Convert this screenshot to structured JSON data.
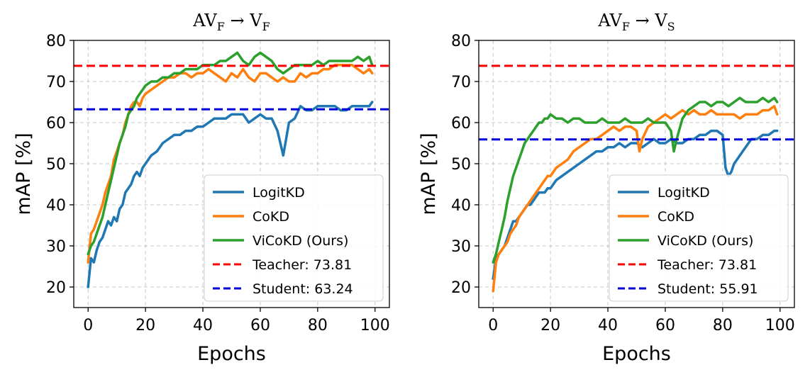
{
  "chart_data": [
    {
      "type": "line",
      "title": {
        "main": "AV",
        "sub1": "F",
        "arrow": "→",
        "main2": "V",
        "sub2": "F"
      },
      "xlabel": "Epochs",
      "ylabel": "mAP [%]",
      "xlim": [
        -5,
        105
      ],
      "ylim": [
        15,
        80
      ],
      "xticks": [
        0,
        20,
        40,
        60,
        80,
        100
      ],
      "yticks": [
        20,
        30,
        40,
        50,
        60,
        70,
        80
      ],
      "xtick_labels": [
        "0",
        "20",
        "40",
        "60",
        "80",
        "100"
      ],
      "ytick_labels": [
        "20",
        "30",
        "40",
        "50",
        "60",
        "70",
        "80"
      ],
      "grid": true,
      "legend_position": "lower-right",
      "series": [
        {
          "name": "LogitKD",
          "color": "#1f77b4",
          "style": "solid",
          "x": [
            0,
            1,
            2,
            3,
            4,
            5,
            6,
            7,
            8,
            9,
            10,
            11,
            12,
            13,
            14,
            15,
            16,
            17,
            18,
            19,
            20,
            22,
            24,
            26,
            28,
            30,
            32,
            34,
            36,
            38,
            40,
            42,
            44,
            46,
            48,
            50,
            52,
            54,
            56,
            58,
            60,
            62,
            64,
            66,
            67,
            68,
            69,
            70,
            72,
            74,
            76,
            78,
            80,
            82,
            84,
            86,
            88,
            90,
            92,
            94,
            96,
            98,
            99
          ],
          "y": [
            20,
            27,
            26,
            29,
            31,
            32,
            34,
            36,
            35,
            37,
            36,
            39,
            40,
            43,
            44,
            45,
            47,
            48,
            47,
            49,
            50,
            52,
            53,
            55,
            56,
            57,
            57,
            58,
            58,
            59,
            59,
            60,
            61,
            61,
            61,
            62,
            62,
            62,
            60,
            61,
            62,
            61,
            61,
            58,
            55,
            52,
            56,
            60,
            61,
            64,
            63,
            63,
            64,
            64,
            64,
            64,
            63,
            63,
            64,
            64,
            64,
            64,
            65
          ],
          "legend_label": "LogitKD"
        },
        {
          "name": "CoKD",
          "color": "#ff7f0e",
          "style": "solid",
          "x": [
            0,
            1,
            2,
            3,
            4,
            5,
            6,
            7,
            8,
            9,
            10,
            11,
            12,
            13,
            14,
            15,
            16,
            17,
            18,
            19,
            20,
            22,
            24,
            26,
            28,
            30,
            32,
            34,
            36,
            38,
            40,
            42,
            44,
            46,
            48,
            50,
            52,
            54,
            56,
            58,
            60,
            62,
            64,
            66,
            68,
            70,
            72,
            74,
            76,
            78,
            80,
            82,
            84,
            86,
            88,
            90,
            92,
            94,
            96,
            98,
            99
          ],
          "y": [
            26,
            33,
            34,
            36,
            38,
            40,
            43,
            45,
            47,
            51,
            53,
            55,
            57,
            60,
            62,
            64,
            65,
            65,
            64,
            66,
            67,
            68,
            69,
            70,
            71,
            71,
            72,
            72,
            71,
            72,
            72,
            73,
            72,
            71,
            70,
            72,
            71,
            73,
            71,
            70,
            72,
            72,
            71,
            70,
            71,
            70,
            70,
            72,
            71,
            72,
            72,
            73,
            73,
            74,
            74,
            74,
            74,
            73,
            72,
            73,
            72
          ],
          "legend_label": "CoKD"
        },
        {
          "name": "ViCoKD (Ours)",
          "color": "#2ca02c",
          "style": "solid",
          "x": [
            0,
            1,
            2,
            3,
            4,
            5,
            6,
            7,
            8,
            9,
            10,
            11,
            12,
            13,
            14,
            15,
            16,
            17,
            18,
            19,
            20,
            22,
            24,
            26,
            28,
            30,
            32,
            34,
            36,
            38,
            40,
            42,
            44,
            46,
            48,
            50,
            52,
            54,
            56,
            58,
            60,
            62,
            64,
            66,
            68,
            70,
            72,
            74,
            76,
            78,
            80,
            82,
            84,
            86,
            88,
            90,
            92,
            94,
            96,
            98,
            99
          ],
          "y": [
            28,
            30,
            31,
            33,
            35,
            37,
            40,
            43,
            46,
            49,
            52,
            55,
            57,
            59,
            62,
            63,
            64,
            66,
            67,
            68,
            69,
            70,
            70,
            71,
            71,
            72,
            72,
            73,
            73,
            73,
            74,
            74,
            74,
            75,
            75,
            76,
            77,
            75,
            74,
            76,
            77,
            76,
            75,
            73,
            72,
            73,
            74,
            74,
            74,
            74,
            75,
            74,
            75,
            75,
            75,
            75,
            75,
            76,
            75,
            76,
            74
          ],
          "legend_label": "ViCoKD (Ours)"
        },
        {
          "name": "Teacher",
          "color": "#ff0000",
          "style": "dashed",
          "value": 73.81,
          "legend_label": "Teacher: 73.81"
        },
        {
          "name": "Student",
          "color": "#0000dd",
          "style": "dashed",
          "value": 63.24,
          "legend_label": "Student: 63.24"
        }
      ]
    },
    {
      "type": "line",
      "title": {
        "main": "AV",
        "sub1": "F",
        "arrow": "→",
        "main2": "V",
        "sub2": "S"
      },
      "xlabel": "Epochs",
      "ylabel": "mAP [%]",
      "xlim": [
        -5,
        105
      ],
      "ylim": [
        15,
        80
      ],
      "xticks": [
        0,
        20,
        40,
        60,
        80,
        100
      ],
      "yticks": [
        20,
        30,
        40,
        50,
        60,
        70,
        80
      ],
      "xtick_labels": [
        "0",
        "20",
        "40",
        "60",
        "80",
        "100"
      ],
      "ytick_labels": [
        "20",
        "30",
        "40",
        "50",
        "60",
        "70",
        "80"
      ],
      "grid": true,
      "legend_position": "lower-right",
      "series": [
        {
          "name": "LogitKD",
          "color": "#1f77b4",
          "style": "solid",
          "x": [
            0,
            1,
            2,
            3,
            4,
            5,
            6,
            7,
            8,
            9,
            10,
            11,
            12,
            13,
            14,
            15,
            16,
            17,
            18,
            19,
            20,
            22,
            24,
            26,
            28,
            30,
            32,
            34,
            36,
            38,
            40,
            42,
            44,
            46,
            48,
            50,
            52,
            54,
            56,
            58,
            60,
            62,
            64,
            66,
            68,
            70,
            72,
            74,
            76,
            78,
            80,
            81,
            82,
            83,
            84,
            86,
            88,
            90,
            92,
            94,
            96,
            98,
            99
          ],
          "y": [
            22,
            27,
            28,
            29,
            30,
            32,
            34,
            36,
            36,
            37,
            38,
            39,
            40,
            40,
            41,
            42,
            43,
            43,
            43,
            44,
            44,
            46,
            47,
            48,
            49,
            50,
            51,
            52,
            53,
            53,
            54,
            54,
            55,
            54,
            55,
            55,
            54,
            55,
            56,
            55,
            55,
            56,
            55,
            55,
            56,
            56,
            57,
            57,
            58,
            58,
            57,
            49,
            47,
            48,
            50,
            52,
            54,
            56,
            56,
            57,
            57,
            58,
            58
          ],
          "legend_label": "LogitKD"
        },
        {
          "name": "CoKD",
          "color": "#ff7f0e",
          "style": "solid",
          "x": [
            0,
            1,
            2,
            3,
            4,
            5,
            6,
            7,
            8,
            9,
            10,
            11,
            12,
            13,
            14,
            15,
            16,
            17,
            18,
            19,
            20,
            22,
            24,
            26,
            28,
            30,
            32,
            34,
            36,
            38,
            40,
            42,
            44,
            46,
            48,
            50,
            51,
            52,
            54,
            56,
            58,
            60,
            62,
            64,
            66,
            68,
            70,
            72,
            74,
            76,
            78,
            80,
            82,
            84,
            86,
            88,
            90,
            92,
            94,
            96,
            98,
            99
          ],
          "y": [
            19,
            26,
            28,
            29,
            30,
            31,
            33,
            34,
            35,
            37,
            38,
            39,
            40,
            41,
            42,
            43,
            44,
            45,
            46,
            47,
            47,
            49,
            50,
            51,
            53,
            54,
            55,
            56,
            56,
            57,
            58,
            59,
            58,
            59,
            59,
            58,
            53,
            56,
            59,
            60,
            61,
            62,
            61,
            62,
            63,
            62,
            63,
            62,
            62,
            63,
            62,
            62,
            62,
            62,
            61,
            62,
            62,
            62,
            63,
            63,
            64,
            62
          ],
          "legend_label": "CoKD"
        },
        {
          "name": "ViCoKD (Ours)",
          "color": "#2ca02c",
          "style": "solid",
          "x": [
            0,
            1,
            2,
            3,
            4,
            5,
            6,
            7,
            8,
            9,
            10,
            11,
            12,
            13,
            14,
            15,
            16,
            17,
            18,
            19,
            20,
            22,
            24,
            26,
            28,
            30,
            32,
            34,
            36,
            38,
            40,
            42,
            44,
            46,
            48,
            50,
            52,
            54,
            56,
            58,
            60,
            62,
            63,
            64,
            66,
            68,
            70,
            72,
            74,
            76,
            78,
            80,
            82,
            84,
            86,
            88,
            90,
            92,
            94,
            96,
            98,
            99
          ],
          "y": [
            26,
            28,
            31,
            34,
            37,
            41,
            44,
            47,
            49,
            51,
            53,
            55,
            56,
            57,
            58,
            59,
            60,
            60,
            61,
            61,
            62,
            61,
            61,
            60,
            61,
            61,
            60,
            60,
            60,
            61,
            60,
            60,
            60,
            61,
            60,
            60,
            60,
            61,
            60,
            60,
            60,
            58,
            53,
            56,
            61,
            63,
            64,
            65,
            65,
            64,
            65,
            65,
            64,
            65,
            66,
            65,
            65,
            65,
            66,
            65,
            66,
            65
          ],
          "legend_label": "ViCoKD (Ours)"
        },
        {
          "name": "Teacher",
          "color": "#ff0000",
          "style": "dashed",
          "value": 73.81,
          "legend_label": "Teacher: 73.81"
        },
        {
          "name": "Student",
          "color": "#0000dd",
          "style": "dashed",
          "value": 55.91,
          "legend_label": "Student: 55.91"
        }
      ]
    }
  ]
}
